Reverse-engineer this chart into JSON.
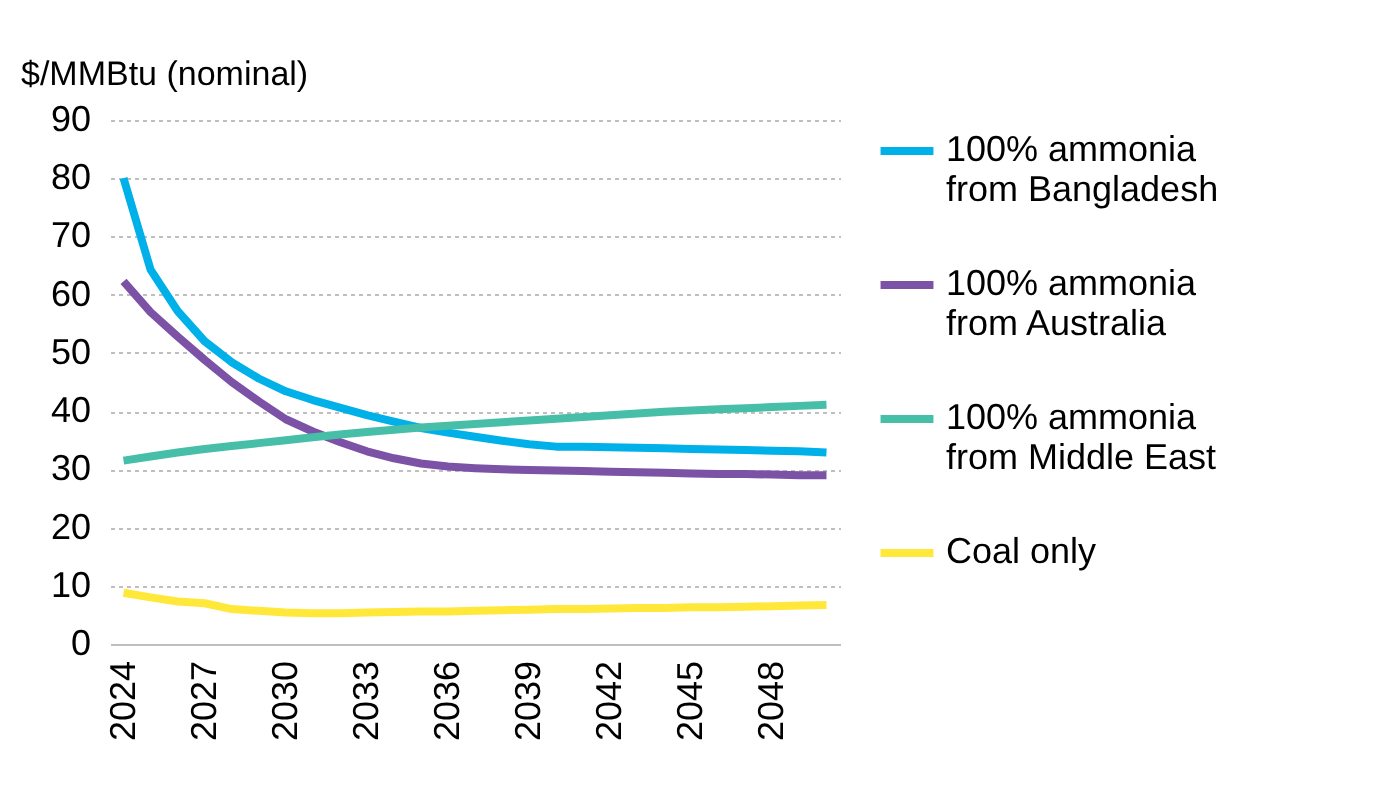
{
  "chart_data": {
    "type": "line",
    "ylabel": "$/MMBtu (nominal)",
    "categories": [
      "2024",
      null,
      null,
      "2027",
      null,
      null,
      "2030",
      null,
      null,
      "2033",
      null,
      null,
      "2036",
      null,
      null,
      "2039",
      null,
      null,
      "2042",
      null,
      null,
      "2045",
      null,
      null,
      "2048",
      null,
      null
    ],
    "ylim": [
      0,
      90
    ],
    "yticks": [
      0,
      10,
      20,
      30,
      40,
      50,
      60,
      70,
      80,
      90
    ],
    "grid": "y",
    "legend": "right",
    "marker": "none",
    "line_style": "solid",
    "series": [
      {
        "name": "100% ammonia from Bangladesh",
        "color": "#00b0e8",
        "values": [
          80,
          64.3,
          57.2,
          52,
          48.4,
          45.6,
          43.4,
          41.9,
          40.6,
          39.3,
          38.2,
          37.1,
          36.3,
          35.6,
          34.9,
          34.3,
          33.9,
          33.9,
          33.8,
          33.7,
          33.6,
          33.5,
          33.4,
          33.3,
          33.2,
          33.1,
          32.9
        ]
      },
      {
        "name": "100% ammonia from Australia",
        "color": "#7b52a6",
        "values": [
          62.3,
          57,
          52.8,
          48.8,
          45,
          41.7,
          38.6,
          36.5,
          34.7,
          33.1,
          31.9,
          31,
          30.5,
          30.2,
          30,
          29.9,
          29.8,
          29.7,
          29.6,
          29.5,
          29.4,
          29.3,
          29.2,
          29.2,
          29.1,
          29,
          29
        ]
      },
      {
        "name": "100% ammonia from Middle East",
        "color": "#47bfa8",
        "values": [
          31.5,
          32.2,
          32.9,
          33.5,
          34,
          34.5,
          35,
          35.5,
          36,
          36.4,
          36.8,
          37.2,
          37.5,
          37.8,
          38.1,
          38.4,
          38.7,
          39,
          39.3,
          39.6,
          39.9,
          40.1,
          40.3,
          40.5,
          40.7,
          40.9,
          41.1
        ]
      },
      {
        "name": "Coal only",
        "color": "#ffe83a",
        "values": [
          8.8,
          8,
          7.3,
          7,
          6,
          5.7,
          5.4,
          5.3,
          5.3,
          5.4,
          5.5,
          5.6,
          5.6,
          5.7,
          5.8,
          5.9,
          6,
          6,
          6.1,
          6.2,
          6.2,
          6.3,
          6.3,
          6.4,
          6.5,
          6.6,
          6.7
        ]
      }
    ]
  }
}
